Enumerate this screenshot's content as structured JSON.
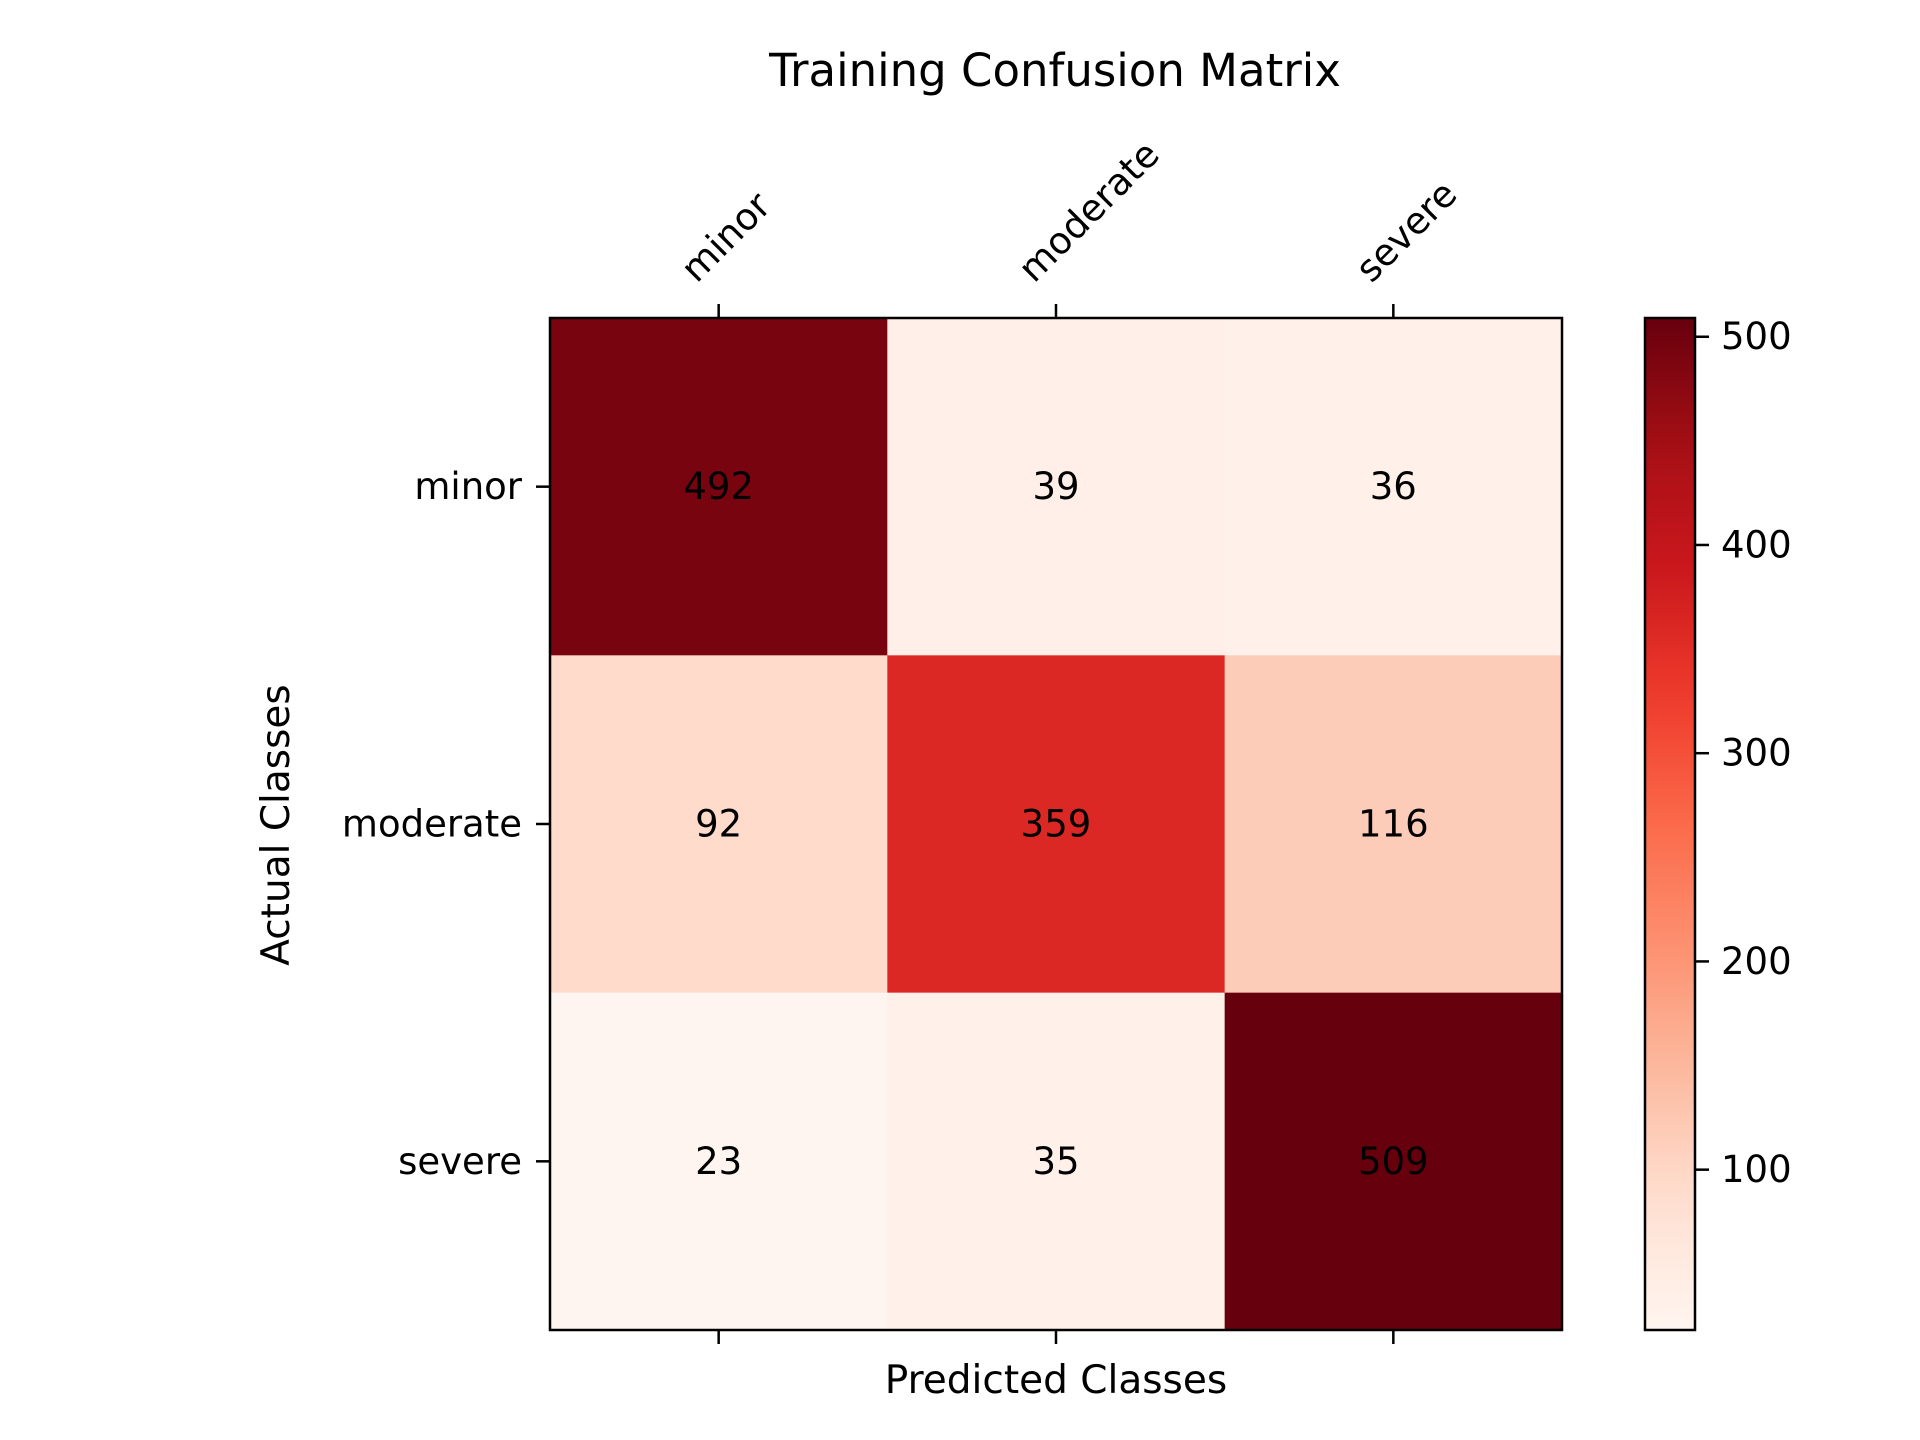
{
  "chart_data": {
    "type": "heatmap",
    "title": "Training Confusion Matrix",
    "xlabel": "Predicted Classes",
    "ylabel": "Actual Classes",
    "x_categories": [
      "minor",
      "moderate",
      "severe"
    ],
    "y_categories": [
      "minor",
      "moderate",
      "severe"
    ],
    "values": [
      [
        492,
        39,
        36
      ],
      [
        92,
        359,
        116
      ],
      [
        23,
        35,
        509
      ]
    ],
    "colormap": "Reds",
    "colorbar": {
      "range": [
        23,
        509
      ],
      "ticks": [
        100,
        200,
        300,
        400,
        500
      ]
    }
  }
}
